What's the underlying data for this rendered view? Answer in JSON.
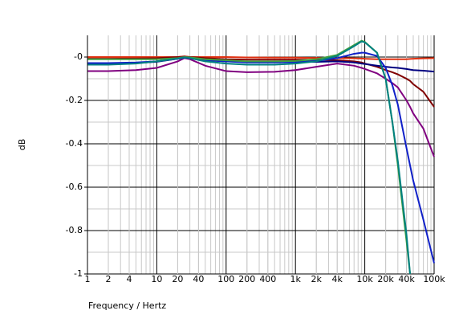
{
  "chart_data": {
    "type": "line",
    "x_label": "Frequency / Hertz",
    "y_label": "dB",
    "log_x": true,
    "grid": true,
    "xlim": [
      1,
      100000
    ],
    "ylim": [
      -1,
      0.1
    ],
    "xticks": [
      1,
      2,
      4,
      10,
      20,
      40,
      100,
      200,
      400,
      {
        "value": 1000,
        "label": "1k"
      },
      {
        "value": 2000,
        "label": "2k"
      },
      {
        "value": 4000,
        "label": "4k"
      },
      {
        "value": 10000,
        "label": "10k"
      },
      {
        "value": 20000,
        "label": "20k"
      },
      {
        "value": 40000,
        "label": "40k"
      },
      {
        "value": 100000,
        "label": "100k"
      }
    ],
    "yticks": [
      {
        "value": 0,
        "label": "-0"
      },
      -0.2,
      -0.4,
      -0.6,
      -0.8,
      -1
    ],
    "x": [
      1,
      2,
      5,
      10,
      20,
      25,
      30,
      50,
      100,
      200,
      500,
      1000,
      2000,
      4000,
      7000,
      9000,
      10000,
      15000,
      20000,
      25000,
      30000,
      40000,
      45000,
      50000,
      70000,
      100000
    ],
    "series": [
      {
        "color": "#e03010",
        "values": [
          0,
          0,
          0,
          0,
          0,
          0.003,
          0,
          0,
          0,
          -0.002,
          -0.003,
          -0.003,
          -0.004,
          -0.005,
          -0.006,
          -0.007,
          -0.008,
          -0.01,
          -0.01,
          -0.01,
          -0.01,
          -0.01,
          -0.009,
          -0.008,
          -0.006,
          -0.005
        ]
      },
      {
        "color": "#800000",
        "values": [
          -0.008,
          -0.008,
          -0.007,
          -0.005,
          0,
          0.002,
          0,
          -0.005,
          -0.01,
          -0.012,
          -0.012,
          -0.012,
          -0.013,
          -0.015,
          -0.02,
          -0.025,
          -0.03,
          -0.045,
          -0.06,
          -0.07,
          -0.08,
          -0.1,
          -0.11,
          -0.125,
          -0.16,
          -0.23
        ]
      },
      {
        "color": "#800080",
        "values": [
          -0.065,
          -0.065,
          -0.06,
          -0.05,
          -0.02,
          -0.005,
          -0.01,
          -0.04,
          -0.065,
          -0.07,
          -0.068,
          -0.06,
          -0.045,
          -0.03,
          -0.04,
          -0.05,
          -0.055,
          -0.075,
          -0.1,
          -0.12,
          -0.14,
          -0.2,
          -0.23,
          -0.26,
          -0.33,
          -0.46
        ]
      },
      {
        "color": "#000080",
        "values": [
          -0.03,
          -0.03,
          -0.028,
          -0.022,
          -0.008,
          -0.003,
          -0.005,
          -0.015,
          -0.02,
          -0.022,
          -0.022,
          -0.022,
          -0.022,
          -0.02,
          -0.025,
          -0.03,
          -0.032,
          -0.04,
          -0.045,
          -0.048,
          -0.05,
          -0.055,
          -0.058,
          -0.06,
          -0.063,
          -0.067
        ]
      },
      {
        "color": "#1020c8",
        "values": [
          -0.028,
          -0.028,
          -0.025,
          -0.02,
          -0.008,
          -0.003,
          -0.005,
          -0.015,
          -0.02,
          -0.025,
          -0.025,
          -0.023,
          -0.018,
          -0.005,
          0.015,
          0.02,
          0.02,
          0.005,
          -0.05,
          -0.13,
          -0.22,
          -0.42,
          -0.5,
          -0.57,
          -0.75,
          -0.95
        ]
      },
      {
        "color": "#40a040",
        "values": [
          -0.01,
          -0.01,
          -0.01,
          -0.01,
          -0.005,
          0,
          -0.002,
          -0.01,
          -0.015,
          -0.02,
          -0.02,
          -0.018,
          -0.01,
          0.01,
          0.055,
          0.075,
          0.07,
          0.02,
          -0.1,
          -0.3,
          -0.5,
          -0.85,
          -1,
          null,
          null,
          null
        ]
      },
      {
        "color": "#008080",
        "values": [
          -0.035,
          -0.035,
          -0.03,
          -0.02,
          -0.007,
          -0.002,
          -0.005,
          -0.02,
          -0.03,
          -0.035,
          -0.035,
          -0.03,
          -0.02,
          0.005,
          0.05,
          0.072,
          0.068,
          0.02,
          -0.1,
          -0.3,
          -0.48,
          -0.82,
          -1,
          null,
          null,
          null
        ]
      }
    ]
  }
}
